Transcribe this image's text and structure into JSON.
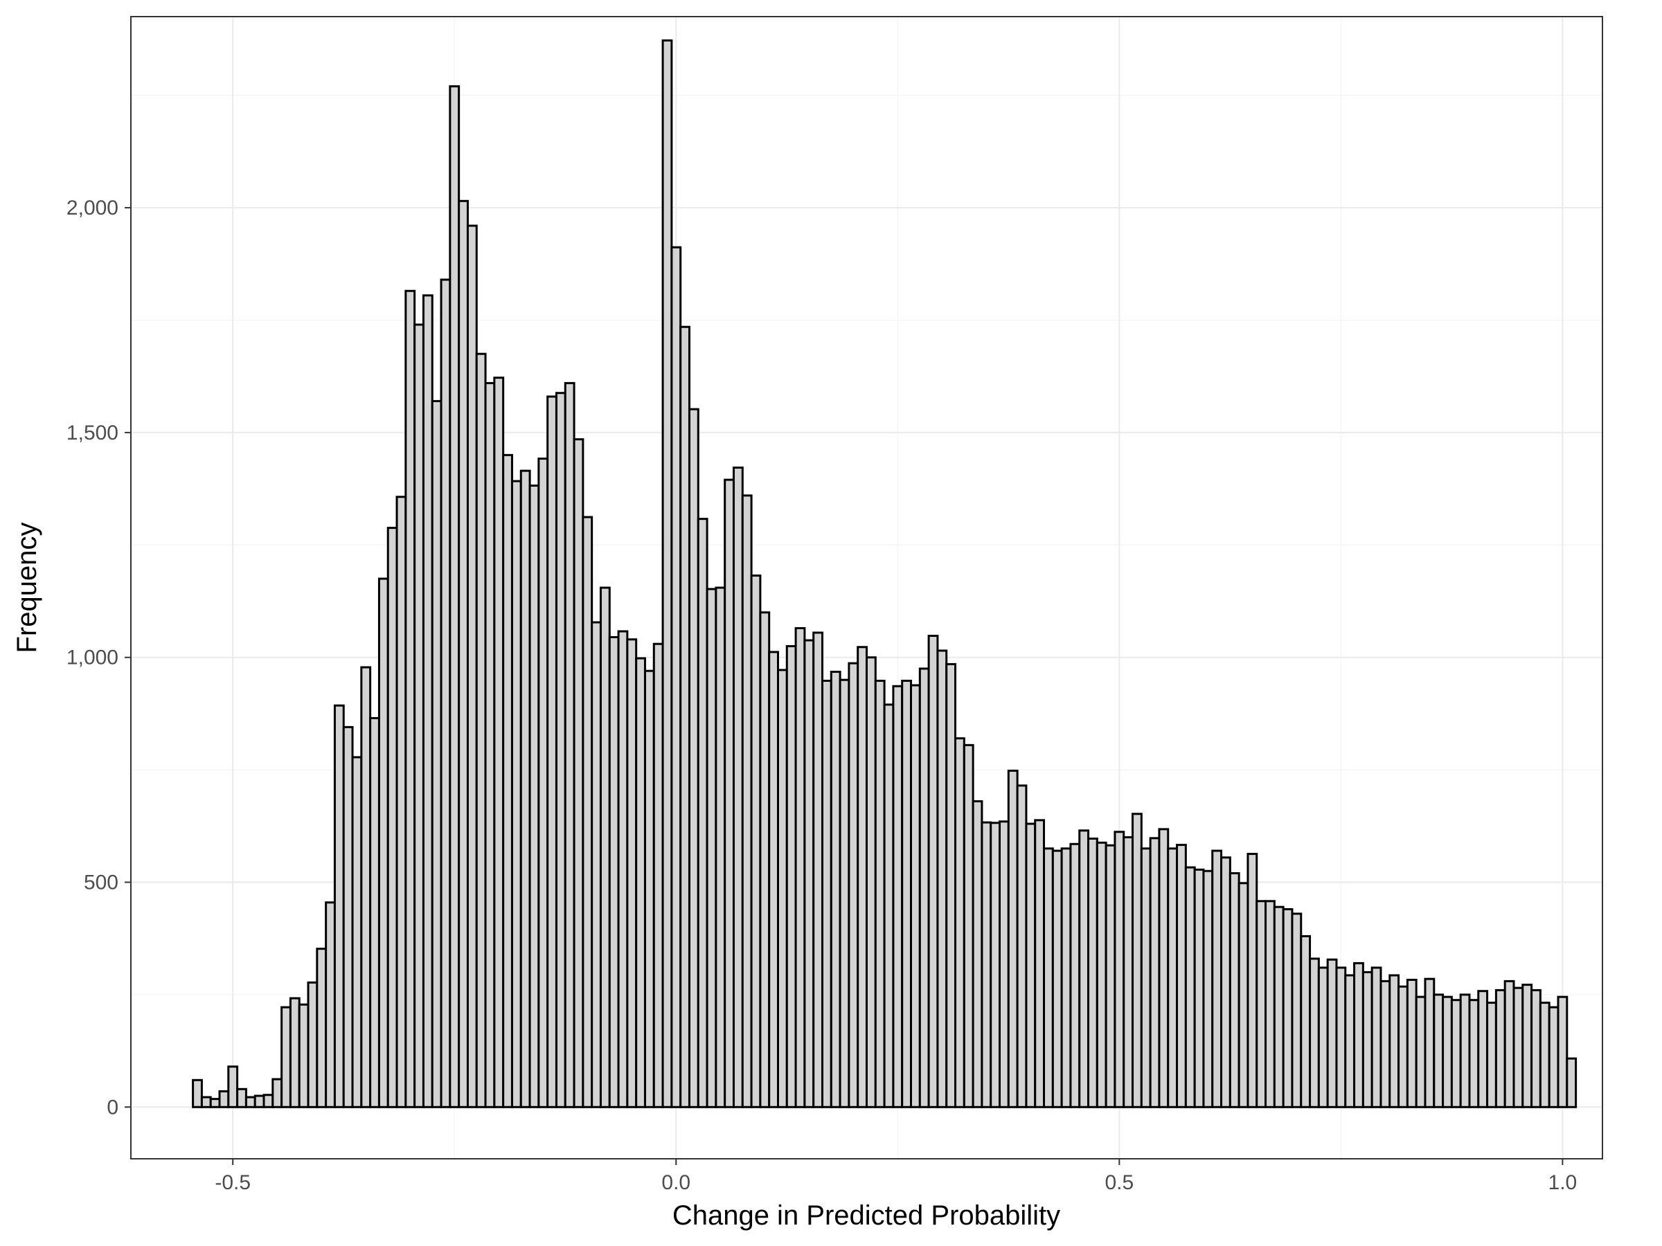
{
  "chart_data": {
    "type": "bar",
    "xlabel": "Change in Predicted Probability",
    "ylabel": "Frequency",
    "xlim": [
      -0.615,
      1.045
    ],
    "ylim": [
      -115,
      2425
    ],
    "x_ticks": [
      -0.5,
      0.0,
      0.5,
      1.0
    ],
    "x_tick_labels": [
      "-0.5",
      "0.0",
      "0.5",
      "1.0"
    ],
    "y_ticks": [
      0,
      500,
      1000,
      1500,
      2000
    ],
    "y_tick_labels": [
      "0",
      "500",
      "1,000",
      "1,500",
      "2,000"
    ],
    "grid": true,
    "bin_start": -0.545,
    "bin_width": 0.01,
    "values": [
      60,
      22,
      18,
      35,
      90,
      40,
      22,
      25,
      27,
      62,
      222,
      242,
      228,
      277,
      352,
      455,
      893,
      845,
      778,
      978,
      865,
      1175,
      1288,
      1357,
      1815,
      1740,
      1805,
      1570,
      1840,
      2270,
      2015,
      1960,
      1675,
      1610,
      1622,
      1450,
      1392,
      1415,
      1382,
      1442,
      1580,
      1588,
      1610,
      1485,
      1312,
      1078,
      1155,
      1045,
      1058,
      1040,
      998,
      970,
      1030,
      2372,
      1912,
      1735,
      1552,
      1308,
      1152,
      1155,
      1395,
      1422,
      1360,
      1182,
      1100,
      1012,
      972,
      1025,
      1065,
      1038,
      1055,
      948,
      968,
      950,
      987,
      1023,
      1000,
      948,
      895,
      936,
      948,
      938,
      975,
      1048,
      1015,
      985,
      820,
      805,
      680,
      633,
      632,
      635,
      748,
      715,
      630,
      638,
      575,
      570,
      575,
      585,
      615,
      597,
      588,
      582,
      612,
      600,
      652,
      575,
      598,
      618,
      575,
      583,
      533,
      528,
      525,
      570,
      555,
      520,
      498,
      563,
      458,
      458,
      445,
      440,
      430,
      380,
      330,
      310,
      328,
      310,
      293,
      320,
      300,
      310,
      280,
      293,
      268,
      283,
      245,
      285,
      250,
      245,
      238,
      250,
      238,
      258,
      232,
      260,
      280,
      265,
      272,
      260,
      232,
      222,
      245,
      108
    ]
  }
}
